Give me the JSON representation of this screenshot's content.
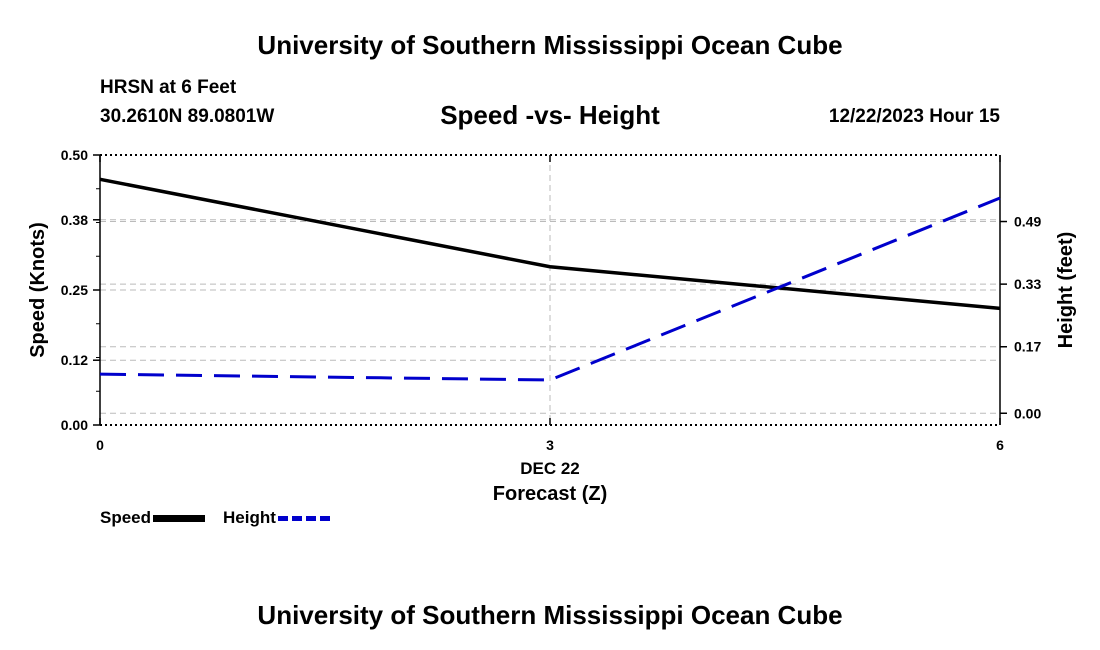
{
  "header": {
    "title": "University of Southern Mississippi Ocean Cube",
    "station": "HRSN at 6 Feet",
    "coords": "30.2610N  89.0801W",
    "datetime": "12/22/2023 Hour 15"
  },
  "footer": {
    "title": "University of Southern Mississippi Ocean Cube"
  },
  "chart_data": {
    "type": "line",
    "title": "Speed -vs- Height",
    "xlabel": "Forecast (Z)",
    "date_label": "DEC 22",
    "ylabel": "Speed (Knots)",
    "y2label": "Height (feet)",
    "x": [
      0,
      3,
      6
    ],
    "xticks": [
      "0",
      "3",
      "6"
    ],
    "xlim": [
      0,
      6
    ],
    "ylim": [
      0,
      0.5
    ],
    "yticks": [
      "0.00",
      "0.12",
      "0.25",
      "0.38",
      "0.50"
    ],
    "y2lim": [
      -0.03,
      0.66
    ],
    "y2ticks": [
      "0.00",
      "0.17",
      "0.33",
      "0.49"
    ],
    "series": [
      {
        "name": "Speed",
        "axis": "left",
        "color": "#000000",
        "style": "solid",
        "values": [
          0.455,
          0.293,
          0.216
        ]
      },
      {
        "name": "Height",
        "axis": "right",
        "color": "#0000cc",
        "style": "dashed",
        "values": [
          0.1,
          0.085,
          0.55
        ]
      }
    ],
    "legend": "bottom-left"
  }
}
